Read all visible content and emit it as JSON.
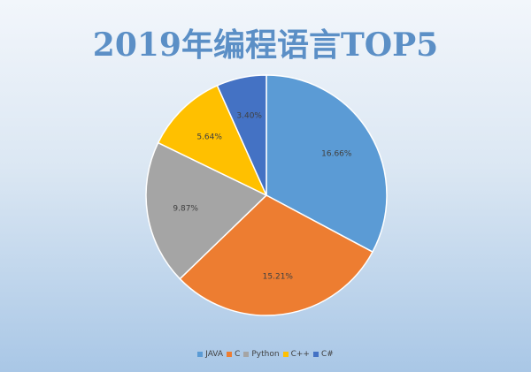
{
  "chart_data": {
    "type": "pie",
    "title": "2019年编程语言TOP5",
    "categories": [
      "JAVA",
      "C",
      "Python",
      "C++",
      "C#"
    ],
    "values": [
      16.66,
      15.21,
      9.87,
      5.64,
      3.4
    ],
    "labels": [
      "16.66%",
      "15.21%",
      "9.87%",
      "5.64%",
      "3.40%"
    ],
    "colors": [
      "#5b9bd5",
      "#ed7d31",
      "#a5a5a5",
      "#ffc000",
      "#4472c4"
    ],
    "start_angle": "12 o'clock",
    "direction": "clockwise",
    "legend_position": "bottom"
  }
}
